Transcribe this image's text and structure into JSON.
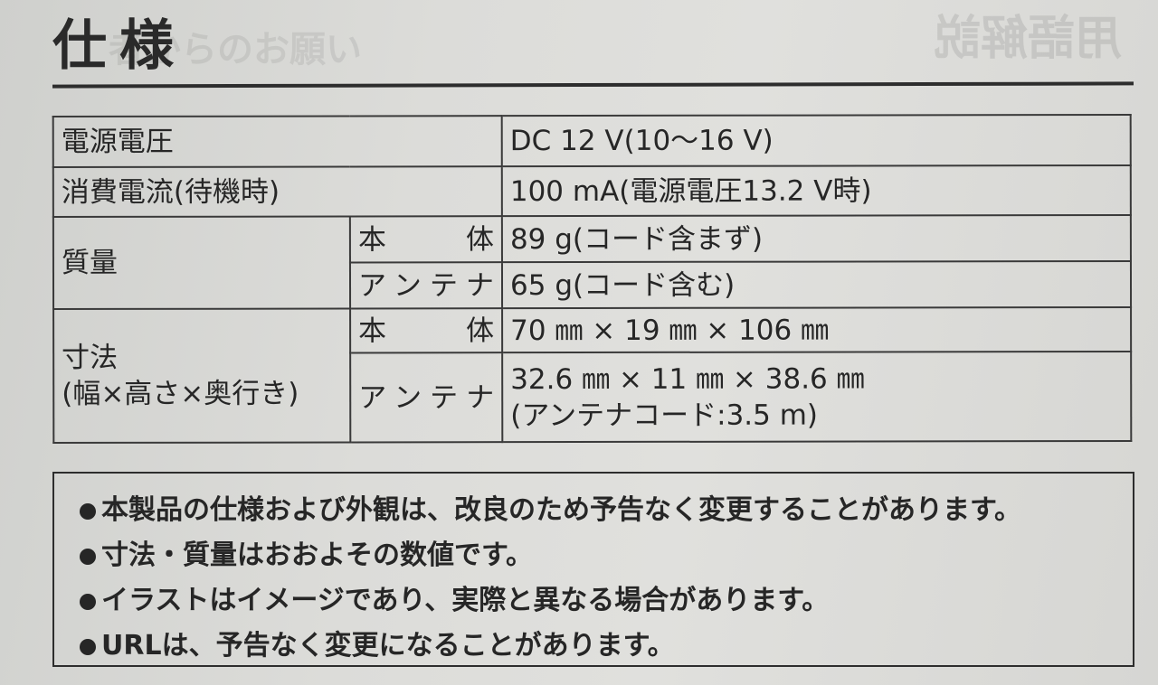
{
  "page": {
    "title": "仕様",
    "ghost_title": "用語解説",
    "ghost_subtitle": "者からのお願い"
  },
  "spec_table": {
    "rows": [
      {
        "label": "電源電圧",
        "value": "DC 12 V(10～16 V)"
      },
      {
        "label": "消費電流(待機時)",
        "value": "100 mA(電源電圧13.2 V時)"
      },
      {
        "label": "質量",
        "sub": [
          {
            "label": "本　体",
            "value": "89 g(コード含まず)"
          },
          {
            "label": "アンテナ",
            "value": "65 g(コード含む)"
          }
        ]
      },
      {
        "label": "寸法",
        "label2": "(幅×高さ×奥行き)",
        "sub": [
          {
            "label": "本　体",
            "value": "70 ㎜ × 19 ㎜ × 106 ㎜"
          },
          {
            "label": "アンテナ",
            "value": "32.6 ㎜ × 11 ㎜ × 38.6 ㎜",
            "value2": "(アンテナコード:3.5 m)"
          }
        ]
      }
    ]
  },
  "notes": [
    "本製品の仕様および外観は、改良のため予告なく変更することがあります。",
    "寸法・質量はおおよその数値です。",
    "イラストはイメージであり、実際と異なる場合があります。",
    "URLは、予告なく変更になることがあります。"
  ]
}
